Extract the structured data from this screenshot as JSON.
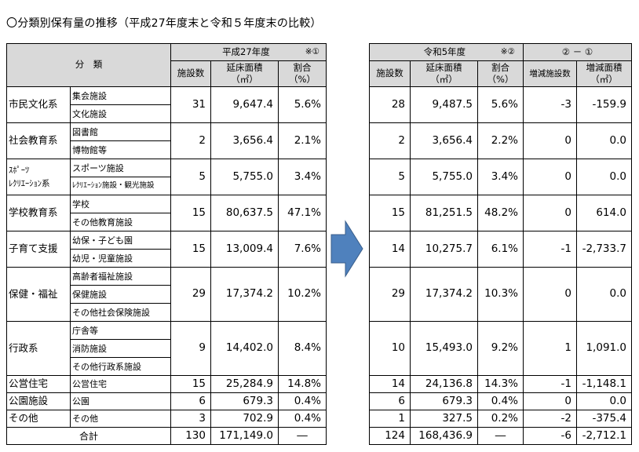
{
  "title": "〇分類別保有量の推移（平成27年度末と令和５年度末の比較）",
  "left": {
    "category_header": "分　類",
    "period_header": "平成27年度",
    "period_mark": "※①",
    "col_facilities": "施設数",
    "col_area_1": "延床面積",
    "col_area_2": "（㎡）",
    "col_ratio_1": "割合",
    "col_ratio_2": "（%）"
  },
  "right": {
    "period_header": "令和5年度",
    "period_mark": "※②",
    "diff_header": "② － ①",
    "col_facilities": "施設数",
    "col_area_1": "延床面積",
    "col_area_2": "（㎡）",
    "col_ratio_1": "割合",
    "col_ratio_2": "（%）",
    "col_diff_facilities": "増減施設数",
    "col_diff_area_1": "増減面積",
    "col_diff_area_2": "（㎡）"
  },
  "categories": [
    {
      "name": "市民文化系",
      "subs": [
        "集会施設",
        "文化施設"
      ],
      "h27": {
        "count": "31",
        "area": "9,647.4",
        "ratio": "5.6%"
      },
      "r5": {
        "count": "28",
        "area": "9,487.5",
        "ratio": "5.6%"
      },
      "diff": {
        "count": "-3",
        "area": "-159.9"
      }
    },
    {
      "name": "社会教育系",
      "subs": [
        "図書館",
        "博物館等"
      ],
      "h27": {
        "count": "2",
        "area": "3,656.4",
        "ratio": "2.1%"
      },
      "r5": {
        "count": "2",
        "area": "3,656.4",
        "ratio": "2.2%"
      },
      "diff": {
        "count": "0",
        "area": "0.0"
      }
    },
    {
      "name_line1": "ｽﾎﾟｰﾂ",
      "name_line2": "ﾚｸﾘｴｰｼｮﾝ系",
      "subs": [
        "スポーツ施設",
        "ﾚｸﾘｴｰｼｮﾝ施設・観光施設"
      ],
      "h27": {
        "count": "5",
        "area": "5,755.0",
        "ratio": "3.4%"
      },
      "r5": {
        "count": "5",
        "area": "5,755.0",
        "ratio": "3.4%"
      },
      "diff": {
        "count": "0",
        "area": "0.0"
      }
    },
    {
      "name": "学校教育系",
      "subs": [
        "学校",
        "その他教育施設"
      ],
      "h27": {
        "count": "15",
        "area": "80,637.5",
        "ratio": "47.1%"
      },
      "r5": {
        "count": "15",
        "area": "81,251.5",
        "ratio": "48.2%"
      },
      "diff": {
        "count": "0",
        "area": "614.0"
      }
    },
    {
      "name": "子育て支援",
      "subs": [
        "幼保・子ども園",
        "幼児・児童施設"
      ],
      "h27": {
        "count": "15",
        "area": "13,009.4",
        "ratio": "7.6%"
      },
      "r5": {
        "count": "14",
        "area": "10,275.7",
        "ratio": "6.1%"
      },
      "diff": {
        "count": "-1",
        "area": "-2,733.7"
      }
    },
    {
      "name": "保健・福祉",
      "subs": [
        "高齢者福祉施設",
        "保健施設",
        "その他社会保険施設"
      ],
      "h27": {
        "count": "29",
        "area": "17,374.2",
        "ratio": "10.2%"
      },
      "r5": {
        "count": "29",
        "area": "17,374.2",
        "ratio": "10.3%"
      },
      "diff": {
        "count": "0",
        "area": "0.0"
      }
    },
    {
      "name": "行政系",
      "subs": [
        "庁舎等",
        "消防施設",
        "その他行政系施設"
      ],
      "h27": {
        "count": "9",
        "area": "14,402.0",
        "ratio": "8.4%"
      },
      "r5": {
        "count": "10",
        "area": "15,493.0",
        "ratio": "9.2%"
      },
      "diff": {
        "count": "1",
        "area": "1,091.0"
      }
    },
    {
      "name": "公営住宅",
      "subs": [
        "公営住宅"
      ],
      "h27": {
        "count": "15",
        "area": "25,284.9",
        "ratio": "14.8%"
      },
      "r5": {
        "count": "14",
        "area": "24,136.8",
        "ratio": "14.3%"
      },
      "diff": {
        "count": "-1",
        "area": "-1,148.1"
      }
    },
    {
      "name": "公園施設",
      "subs": [
        "公園"
      ],
      "h27": {
        "count": "6",
        "area": "679.3",
        "ratio": "0.4%"
      },
      "r5": {
        "count": "6",
        "area": "679.3",
        "ratio": "0.4%"
      },
      "diff": {
        "count": "0",
        "area": "0.0"
      }
    },
    {
      "name": "その他",
      "subs": [
        "その他"
      ],
      "h27": {
        "count": "3",
        "area": "702.9",
        "ratio": "0.4%"
      },
      "r5": {
        "count": "1",
        "area": "327.5",
        "ratio": "0.2%"
      },
      "diff": {
        "count": "-2",
        "area": "-375.4"
      }
    }
  ],
  "total": {
    "label": "合計",
    "h27": {
      "count": "130",
      "area": "171,149.0",
      "ratio": "―"
    },
    "r5": {
      "count": "124",
      "area": "168,436.9",
      "ratio": "―"
    },
    "diff": {
      "count": "-6",
      "area": "-2,712.1"
    }
  },
  "colors": {
    "header_bg": "#d9d9d9",
    "arrow_fill": "#4f81bd",
    "arrow_stroke": "#385d8a"
  }
}
